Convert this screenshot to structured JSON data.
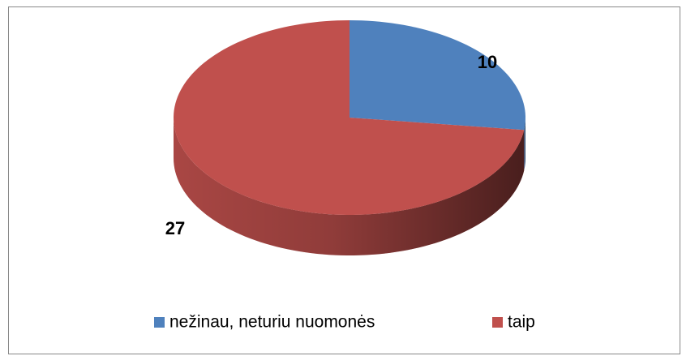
{
  "chart_data": {
    "type": "pie",
    "categories": [
      "nežinau, neturiu nuomonės",
      "taip"
    ],
    "values": [
      10,
      27
    ],
    "colors": [
      "#4f81bd",
      "#c0504d"
    ],
    "legend": "bottom"
  }
}
